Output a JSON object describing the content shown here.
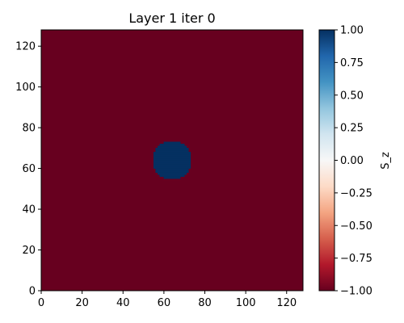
{
  "chart_data": {
    "type": "heatmap",
    "title": "Layer 1 iter 0",
    "xlabel": "",
    "ylabel": "",
    "xlim": [
      0,
      128
    ],
    "ylim": [
      0,
      128
    ],
    "grid": false,
    "x_ticks": [
      0,
      20,
      40,
      60,
      80,
      100,
      120
    ],
    "y_ticks": [
      0,
      20,
      40,
      60,
      80,
      100,
      120
    ],
    "background_value": -1.0,
    "regions": [
      {
        "shape": "disk",
        "center": [
          64,
          64
        ],
        "radius": 9.5,
        "value": 1.0
      }
    ],
    "colorbar": {
      "label": "S_z",
      "colormap": "RdBu",
      "range": [
        -1.0,
        1.0
      ],
      "ticks": [
        "1.00",
        "0.75",
        "0.50",
        "0.25",
        "0.00",
        "−0.25",
        "−0.50",
        "−0.75",
        "−1.00"
      ],
      "tick_values": [
        1.0,
        0.75,
        0.5,
        0.25,
        0.0,
        -0.25,
        -0.5,
        -0.75,
        -1.0
      ]
    }
  }
}
